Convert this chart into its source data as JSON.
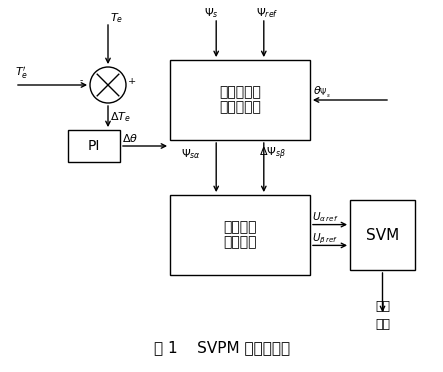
{
  "fig_width": 4.43,
  "fig_height": 3.72,
  "title_text": "图 1    SVPM 模块原理图",
  "block1_text_line1": "磁链补偿値",
  "block1_text_line2": "分量的计算",
  "block2_text_line1": "电压空间",
  "block2_text_line2": "矢量计算",
  "pi_text": "PI",
  "svm_text": "SVM",
  "drive_text_line1": "驱动",
  "drive_text_line2": "信号",
  "lw": 1.0
}
